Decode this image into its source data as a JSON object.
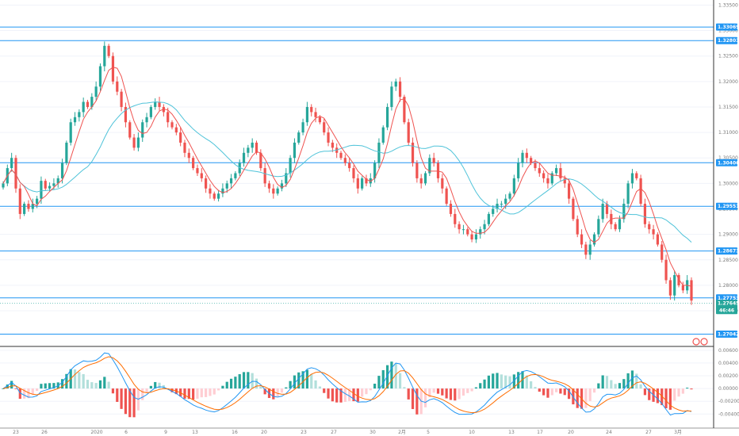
{
  "chart_data": [
    {
      "type": "candlestick",
      "title": "",
      "y_ticks": [
        "1.33500",
        "1.33000",
        "1.32500",
        "1.32000",
        "1.31500",
        "1.31000",
        "1.30500",
        "1.30000",
        "1.29500",
        "1.29000",
        "1.28500",
        "1.28000",
        "1.27500"
      ],
      "ylim": [
        1.268,
        1.336
      ],
      "x_ticks": [
        "23",
        "26",
        "2020",
        "6",
        "9",
        "13",
        "16",
        "20",
        "23",
        "27",
        "30",
        "2月",
        "5",
        "10",
        "13",
        "17",
        "20",
        "24",
        "27",
        "3月"
      ],
      "horizontal_levels": [
        "1.33069",
        "1.32803",
        "1.30406",
        "1.29551",
        "1.28673",
        "1.27753",
        "1.27042"
      ],
      "current_price": "1.27645",
      "countdown": "46:46",
      "close": [
        1.3,
        1.303,
        1.305,
        1.299,
        1.294,
        1.296,
        1.295,
        1.296,
        1.297,
        1.3005,
        1.299,
        1.2995,
        1.3,
        1.301,
        1.304,
        1.308,
        1.312,
        1.313,
        1.314,
        1.316,
        1.315,
        1.317,
        1.319,
        1.323,
        1.327,
        1.325,
        1.32,
        1.318,
        1.315,
        1.312,
        1.309,
        1.307,
        1.309,
        1.312,
        1.313,
        1.315,
        1.316,
        1.315,
        1.314,
        1.312,
        1.311,
        1.31,
        1.308,
        1.306,
        1.305,
        1.303,
        1.302,
        1.301,
        1.299,
        1.298,
        1.297,
        1.298,
        1.299,
        1.3,
        1.301,
        1.302,
        1.304,
        1.306,
        1.307,
        1.308,
        1.306,
        1.303,
        1.3,
        1.299,
        1.298,
        1.299,
        1.3,
        1.302,
        1.305,
        1.308,
        1.31,
        1.312,
        1.315,
        1.314,
        1.313,
        1.312,
        1.31,
        1.308,
        1.307,
        1.306,
        1.305,
        1.304,
        1.303,
        1.301,
        1.299,
        1.301,
        1.3,
        1.301,
        1.304,
        1.308,
        1.311,
        1.315,
        1.319,
        1.32,
        1.317,
        1.312,
        1.308,
        1.304,
        1.301,
        1.3,
        1.302,
        1.305,
        1.304,
        1.301,
        1.299,
        1.296,
        1.294,
        1.292,
        1.291,
        1.291,
        1.29,
        1.289,
        1.29,
        1.291,
        1.292,
        1.294,
        1.295,
        1.296,
        1.296,
        1.297,
        1.298,
        1.301,
        1.304,
        1.306,
        1.305,
        1.304,
        1.303,
        1.302,
        1.301,
        1.3,
        1.302,
        1.303,
        1.301,
        1.3,
        1.297,
        1.293,
        1.29,
        1.288,
        1.286,
        1.288,
        1.29,
        1.293,
        1.296,
        1.294,
        1.292,
        1.291,
        1.293,
        1.296,
        1.3,
        1.302,
        1.301,
        1.296,
        1.292,
        1.291,
        1.29,
        1.288,
        1.285,
        1.281,
        1.278,
        1.282,
        1.28,
        1.279,
        1.281,
        1.277
      ],
      "ma_fast_color": "#ef5350",
      "ma_slow_color": "#4fc3d9",
      "up_color": "#26a69a",
      "down_color": "#ef5350"
    },
    {
      "type": "macd",
      "y_ticks": [
        "0.00600",
        "0.00400",
        "0.00200",
        "0.00000",
        "-0.00200",
        "-0.00400"
      ],
      "ylim": [
        -0.0062,
        0.0066
      ],
      "macd_color": "#2196f3",
      "signal_color": "#ff6d00"
    }
  ]
}
